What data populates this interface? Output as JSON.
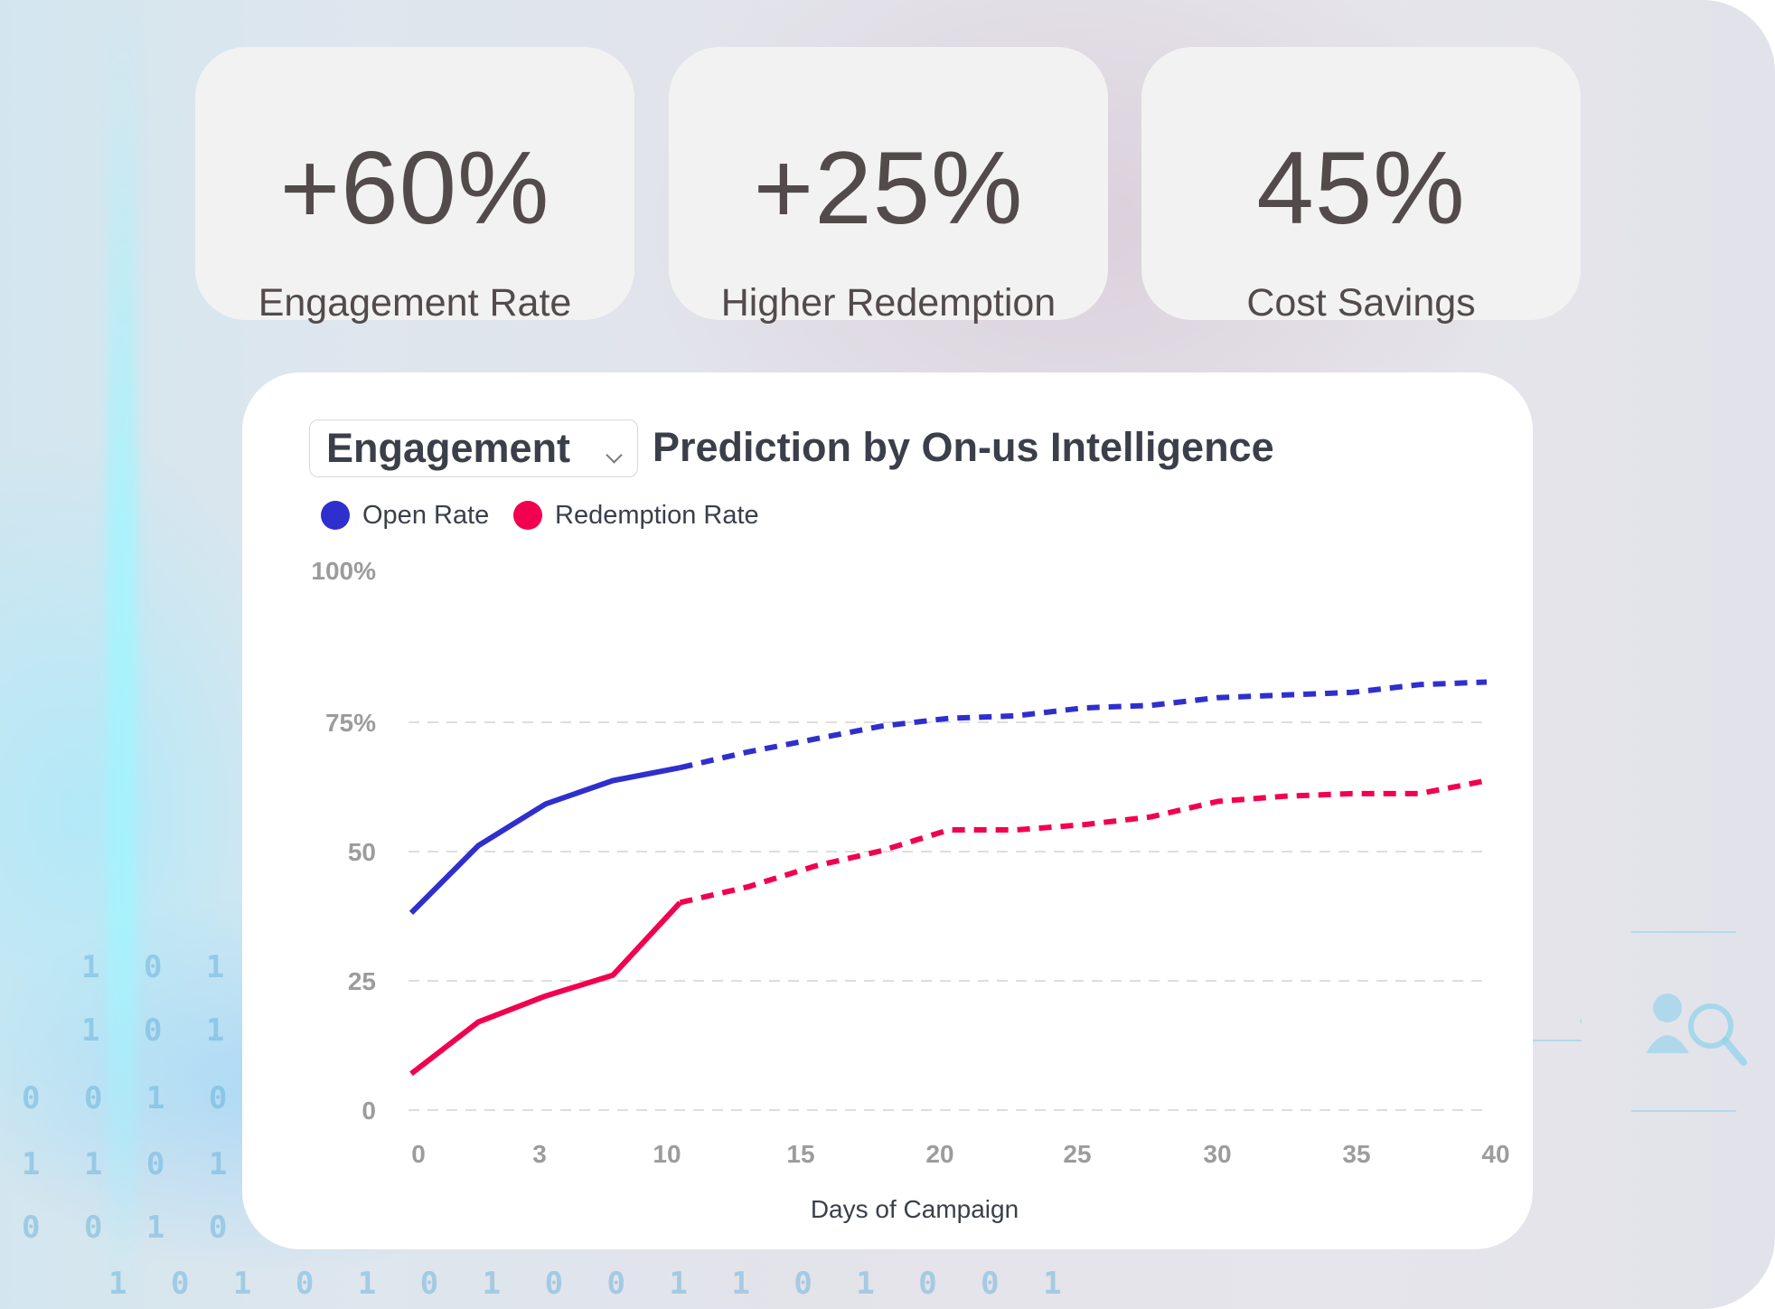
{
  "stats": [
    {
      "value": "+60%",
      "label": "Engagement Rate"
    },
    {
      "value": "+25%",
      "label": "Higher Redemption"
    },
    {
      "value": "45%",
      "label": "Cost Savings"
    }
  ],
  "chart_header": {
    "dropdown_value": "Engagement",
    "title": "Prediction by On-us Intelligence"
  },
  "colors": {
    "open_rate": "#2f2fce",
    "redemption_rate": "#f2004f",
    "gridline": "#dedede"
  },
  "chart_data": {
    "type": "line",
    "title": "Engagement Prediction by On-us Intelligence",
    "xlabel": "Days of Campaign",
    "ylabel": "",
    "xlim": [
      0,
      40
    ],
    "ylim": [
      0,
      100
    ],
    "x_ticks": [
      "0",
      "3",
      "10",
      "15",
      "20",
      "25",
      "30",
      "35",
      "40"
    ],
    "y_ticks": [
      "0",
      "25",
      "50",
      "75%",
      "100%"
    ],
    "grid": true,
    "legend_position": "top-left",
    "legend": [
      "Open Rate",
      "Redemption Rate"
    ],
    "x": [
      0,
      1,
      2,
      3,
      4,
      5,
      6,
      7,
      8,
      9,
      10,
      11,
      12,
      13,
      14,
      15,
      16
    ],
    "actual_until_index": 4,
    "series": [
      {
        "name": "Open Rate",
        "values": [
          38,
          51,
          59,
          63.5,
          66,
          69,
          71.5,
          74,
          75.5,
          76,
          77.5,
          78,
          79.5,
          80,
          80.5,
          82,
          82.5
        ]
      },
      {
        "name": "Redemption Rate",
        "values": [
          7,
          17,
          22,
          26,
          40,
          43,
          47,
          50,
          54,
          54,
          55,
          56.5,
          59.5,
          60.5,
          61,
          61,
          63.5
        ]
      }
    ]
  }
}
